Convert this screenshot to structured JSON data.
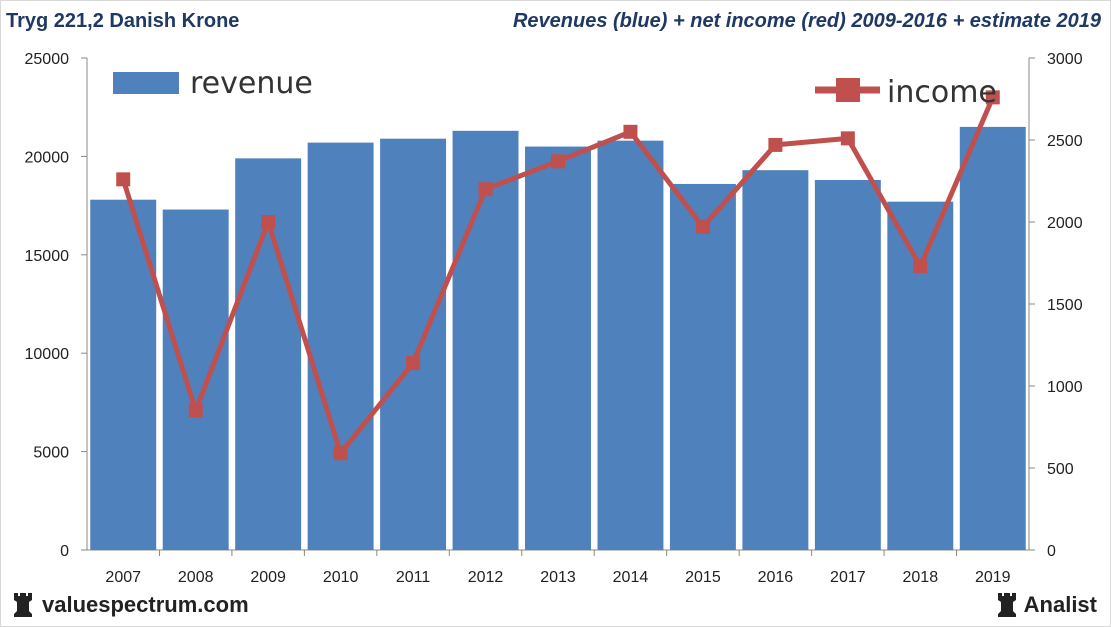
{
  "header": {
    "left_title": "Tryg 221,2 Danish Krone",
    "right_title": "Revenues (blue) + net income (red) 2009-2016 + estimate 2019"
  },
  "footer": {
    "left_brand": "valuespectrum.com",
    "right_brand": "Analist",
    "left_icon": "rook-icon",
    "right_icon": "rook-icon"
  },
  "colors": {
    "bar": "#4f81bd",
    "line": "#c0504d"
  },
  "chart_data": {
    "type": "bar+line",
    "categories": [
      "2007",
      "2008",
      "2009",
      "2010",
      "2011",
      "2012",
      "2013",
      "2014",
      "2015",
      "2016",
      "2017",
      "2018",
      "2019"
    ],
    "series": [
      {
        "name": "revenue",
        "type": "bar",
        "axis": "left",
        "values": [
          17800,
          17300,
          19900,
          20700,
          20900,
          21300,
          20500,
          20800,
          18600,
          19300,
          18800,
          17700,
          21500
        ]
      },
      {
        "name": "income",
        "type": "line",
        "axis": "right",
        "values": [
          2260,
          850,
          2000,
          590,
          1140,
          2200,
          2370,
          2550,
          1970,
          2470,
          2510,
          1730,
          2760
        ]
      }
    ],
    "left_axis": {
      "min": 0,
      "max": 25000,
      "ticks": [
        "0",
        "5000",
        "10000",
        "15000",
        "20000",
        "25000"
      ]
    },
    "right_axis": {
      "min": 0,
      "max": 3000,
      "ticks": [
        "0",
        "500",
        "1000",
        "1500",
        "2000",
        "2500",
        "3000"
      ]
    },
    "legend": {
      "revenue_label": "revenue",
      "income_label": "income",
      "revenue_position": "top-left",
      "income_position": "top-right"
    }
  }
}
